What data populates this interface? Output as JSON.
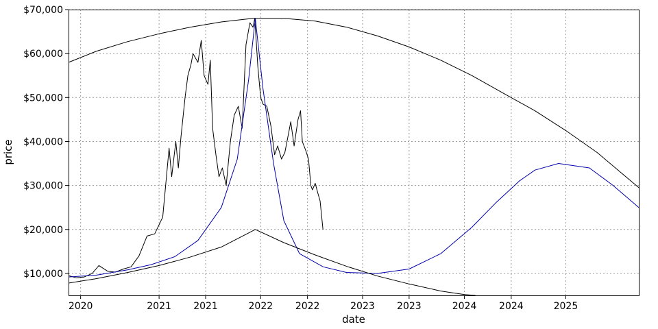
{
  "chart_data": {
    "type": "line",
    "title": "",
    "xlabel": "date",
    "ylabel": "price",
    "xlim": [
      "2019-11-15",
      "2025-12-10"
    ],
    "ylim": [
      5000,
      70000
    ],
    "grid": true,
    "y_ticks": [
      {
        "value": 10000,
        "label": "$10,000"
      },
      {
        "value": 20000,
        "label": "$20,000"
      },
      {
        "value": 30000,
        "label": "$30,000"
      },
      {
        "value": 40000,
        "label": "$40,000"
      },
      {
        "value": 50000,
        "label": "$50,000"
      },
      {
        "value": 60000,
        "label": "$60,000"
      },
      {
        "value": 70000,
        "label": "$70,000"
      }
    ],
    "x_ticks": [
      {
        "value": "2020-01-01",
        "label": "2020"
      },
      {
        "value": "2020-11-01",
        "label": "2021"
      },
      {
        "value": "2021-05-01",
        "label": "2021"
      },
      {
        "value": "2021-12-01",
        "label": "2022"
      },
      {
        "value": "2022-06-01",
        "label": "2022"
      },
      {
        "value": "2023-01-01",
        "label": "2023"
      },
      {
        "value": "2023-07-01",
        "label": "2023"
      },
      {
        "value": "2024-02-01",
        "label": "2024"
      },
      {
        "value": "2024-08-01",
        "label": "2024"
      },
      {
        "value": "2025-03-01",
        "label": "2025"
      }
    ],
    "series": [
      {
        "color": "#000000",
        "x": [
          "2019-11-15",
          "2019-12-15",
          "2020-01-15",
          "2020-02-15",
          "2020-03-12",
          "2020-04-15",
          "2020-05-15",
          "2020-06-15",
          "2020-07-15",
          "2020-08-15",
          "2020-09-15",
          "2020-10-15",
          "2020-11-15",
          "2020-12-10",
          "2020-12-20",
          "2021-01-05",
          "2021-01-15",
          "2021-01-25",
          "2021-02-10",
          "2021-02-21",
          "2021-03-05",
          "2021-03-13",
          "2021-04-01",
          "2021-04-14",
          "2021-04-25",
          "2021-05-10",
          "2021-05-19",
          "2021-05-28",
          "2021-06-10",
          "2021-06-22",
          "2021-07-05",
          "2021-07-20",
          "2021-08-05",
          "2021-08-20",
          "2021-09-05",
          "2021-09-20",
          "2021-10-05",
          "2021-10-20",
          "2021-11-01",
          "2021-11-08",
          "2021-11-20",
          "2021-12-01",
          "2021-12-10",
          "2021-12-25",
          "2022-01-10",
          "2022-01-24",
          "2022-02-05",
          "2022-02-20",
          "2022-03-05",
          "2022-03-20",
          "2022-03-28",
          "2022-04-10",
          "2022-04-25",
          "2022-05-05",
          "2022-05-12",
          "2022-05-25",
          "2022-06-05",
          "2022-06-14",
          "2022-06-20",
          "2022-07-01",
          "2022-07-10",
          "2022-07-20",
          "2022-07-31"
        ],
        "values": [
          9500,
          9000,
          9200,
          10000,
          11800,
          10500,
          10300,
          11000,
          11500,
          14000,
          18500,
          19000,
          22800,
          38500,
          32000,
          40000,
          34000,
          41000,
          50000,
          55000,
          57500,
          60000,
          58000,
          63000,
          55000,
          53000,
          58500,
          43000,
          37000,
          32000,
          34000,
          30000,
          40000,
          46000,
          48000,
          43000,
          62000,
          67000,
          66000,
          68000,
          57000,
          50000,
          48500,
          48000,
          43500,
          37000,
          39000,
          36000,
          37500,
          42000,
          44500,
          39000,
          45000,
          47000,
          40000,
          38000,
          36000,
          30000,
          29000,
          30500,
          28500,
          26500,
          20000
        ]
      },
      {
        "color": "#000000",
        "x": [
          "2019-11-15",
          "2020-03-01",
          "2020-07-01",
          "2020-11-01",
          "2021-03-01",
          "2021-07-01",
          "2021-11-01",
          "2022-03-01",
          "2022-07-01",
          "2022-11-01",
          "2023-03-01",
          "2023-07-01",
          "2023-11-01",
          "2024-03-01",
          "2024-07-01",
          "2024-11-01",
          "2025-03-01",
          "2025-07-01",
          "2025-12-10"
        ],
        "values": [
          58000,
          60500,
          62700,
          64500,
          66000,
          67200,
          68000,
          68000,
          67400,
          66000,
          64000,
          61500,
          58500,
          55000,
          51000,
          47000,
          42500,
          37500,
          29500
        ]
      },
      {
        "color": "#0000aa",
        "x": [
          "2019-11-15",
          "2020-03-01",
          "2020-07-01",
          "2020-10-01",
          "2021-01-01",
          "2021-04-01",
          "2021-07-01",
          "2021-09-01",
          "2021-10-15",
          "2021-11-10",
          "2021-12-10",
          "2022-01-20",
          "2022-03-01",
          "2022-05-01",
          "2022-08-01",
          "2022-11-01",
          "2023-03-01",
          "2023-07-01",
          "2023-11-01",
          "2024-03-01",
          "2024-06-01",
          "2024-09-01",
          "2024-11-01",
          "2025-02-01",
          "2025-06-01",
          "2025-09-01",
          "2025-12-10"
        ],
        "values": [
          9200,
          9600,
          10800,
          12000,
          13800,
          17500,
          25000,
          36000,
          54000,
          68000,
          52000,
          35000,
          22000,
          14500,
          11500,
          10200,
          10000,
          11000,
          14500,
          20500,
          26000,
          31000,
          33500,
          35000,
          34000,
          30000,
          25000
        ]
      },
      {
        "color": "#000000",
        "x": [
          "2019-11-15",
          "2020-03-01",
          "2020-07-01",
          "2020-11-01",
          "2021-03-01",
          "2021-07-01",
          "2021-11-10",
          "2022-03-01",
          "2022-07-01",
          "2022-11-01",
          "2023-03-01",
          "2023-07-01",
          "2023-11-01",
          "2024-02-01",
          "2024-03-15"
        ],
        "values": [
          7800,
          8800,
          10200,
          11800,
          13700,
          16000,
          20000,
          17000,
          14200,
          11600,
          9400,
          7600,
          6000,
          5200,
          5000
        ]
      }
    ]
  }
}
